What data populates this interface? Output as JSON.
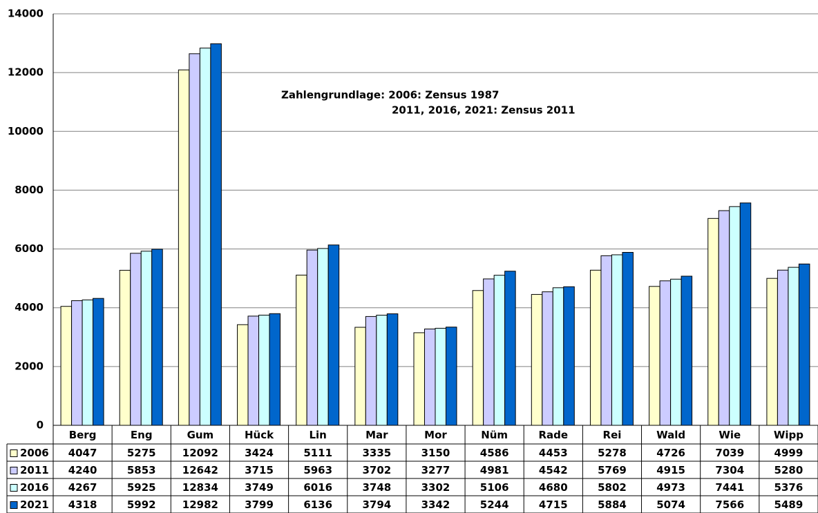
{
  "chart_data": {
    "type": "bar",
    "annotations": [
      "Zahlengrundlage:  2006: Zensus 1987",
      "2011, 2016, 2021: Zensus 2011"
    ],
    "categories": [
      "Berg",
      "Eng",
      "Gum",
      "Hück",
      "Lin",
      "Mar",
      "Mor",
      "Nüm",
      "Rade",
      "Rei",
      "Wald",
      "Wie",
      "Wipp"
    ],
    "series": [
      {
        "name": "2006",
        "color": "#ffffcc",
        "values": [
          4047,
          5275,
          12092,
          3424,
          5111,
          3335,
          3150,
          4586,
          4453,
          5278,
          4726,
          7039,
          4999
        ]
      },
      {
        "name": "2011",
        "color": "#ccccff",
        "values": [
          4240,
          5853,
          12642,
          3715,
          5963,
          3702,
          3277,
          4981,
          4542,
          5769,
          4915,
          7304,
          5280
        ]
      },
      {
        "name": "2016",
        "color": "#ccffff",
        "values": [
          4267,
          5925,
          12834,
          3749,
          6016,
          3748,
          3302,
          5106,
          4680,
          5802,
          4973,
          7441,
          5376
        ]
      },
      {
        "name": "2021",
        "color": "#0066cc",
        "values": [
          4318,
          5992,
          12982,
          3799,
          6136,
          3794,
          3342,
          5244,
          4715,
          5884,
          5074,
          7566,
          5489
        ]
      }
    ],
    "ylim": [
      0,
      14000
    ],
    "yticks": [
      0,
      2000,
      4000,
      6000,
      8000,
      10000,
      12000,
      14000
    ],
    "grid": true
  }
}
